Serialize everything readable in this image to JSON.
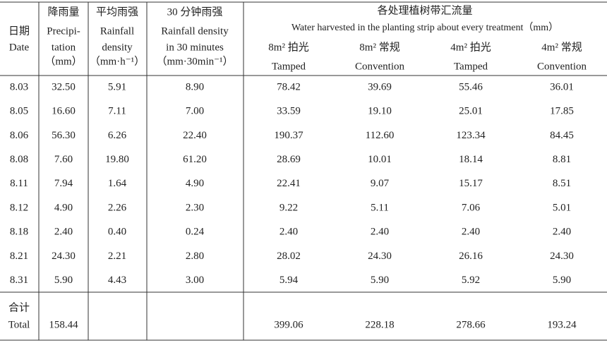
{
  "table": {
    "columns": [
      {
        "lines": [
          "日期",
          "Date"
        ]
      },
      {
        "lines": [
          "降雨量",
          "Precipi-",
          "tation",
          "（mm）"
        ]
      },
      {
        "lines": [
          "平均雨强",
          "Rainfall",
          "density",
          "（mm·h⁻¹）"
        ]
      },
      {
        "lines": [
          "30 分钟雨强",
          "Rainfall density",
          "in 30 minutes",
          "（mm·30min⁻¹）"
        ]
      }
    ],
    "group": {
      "lines": [
        "各处理植树带汇流量",
        "Water harvested in the planting strip about every treatment（mm）"
      ],
      "columns": [
        {
          "lines": [
            "8m² 拍光",
            "Tamped"
          ]
        },
        {
          "lines": [
            "8m² 常规",
            "Convention"
          ]
        },
        {
          "lines": [
            "4m² 拍光",
            "Tamped"
          ]
        },
        {
          "lines": [
            "4m² 常规",
            "Convention"
          ]
        }
      ]
    },
    "rows": [
      [
        "8.03",
        "32.50",
        "5.91",
        "8.90",
        "78.42",
        "39.69",
        "55.46",
        "36.01"
      ],
      [
        "8.05",
        "16.60",
        "7.11",
        "7.00",
        "33.59",
        "19.10",
        "25.01",
        "17.85"
      ],
      [
        "8.06",
        "56.30",
        "6.26",
        "22.40",
        "190.37",
        "112.60",
        "123.34",
        "84.45"
      ],
      [
        "8.08",
        "7.60",
        "19.80",
        "61.20",
        "28.69",
        "10.01",
        "18.14",
        "8.81"
      ],
      [
        "8.11",
        "7.94",
        "1.64",
        "4.90",
        "22.41",
        "9.07",
        "15.17",
        "8.51"
      ],
      [
        "8.12",
        "4.90",
        "2.26",
        "2.30",
        "9.22",
        "5.11",
        "7.06",
        "5.01"
      ],
      [
        "8.18",
        "2.40",
        "0.40",
        "0.24",
        "2.40",
        "2.40",
        "2.40",
        "2.40"
      ],
      [
        "8.21",
        "24.30",
        "2.21",
        "2.80",
        "28.02",
        "24.30",
        "26.16",
        "24.30"
      ],
      [
        "8.31",
        "5.90",
        "4.43",
        "3.00",
        "5.94",
        "5.90",
        "5.92",
        "5.90"
      ]
    ],
    "total": {
      "label": [
        "合计",
        "Total"
      ],
      "precipitation": "158.44",
      "harvest": [
        "399.06",
        "228.18",
        "278.66",
        "193.24"
      ]
    }
  }
}
